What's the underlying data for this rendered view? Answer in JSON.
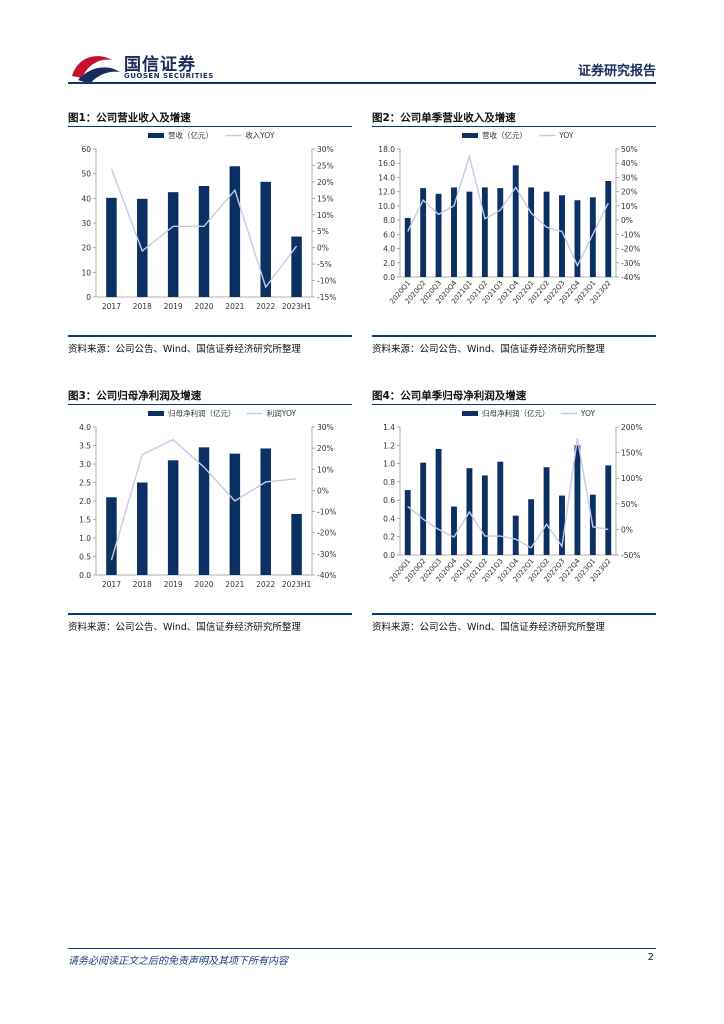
{
  "header": {
    "logo_cn": "国信证券",
    "logo_en": "GUOSEN SECURITIES",
    "title": "证券研究报告"
  },
  "figures": [
    {
      "title": "图1：公司营业收入及增速",
      "source": "资料来源：公司公告、Wind、国信证券经济研究所整理"
    },
    {
      "title": "图2：公司单季营业收入及增速",
      "source": "资料来源：公司公告、Wind、国信证券经济研究所整理"
    },
    {
      "title": "图3：公司归母净利润及增速",
      "source": "资料来源：公司公告、Wind、国信证券经济研究所整理"
    },
    {
      "title": "图4：公司单季归母净利润及增速",
      "source": "资料来源：公司公告、Wind、国信证券经济研究所整理"
    }
  ],
  "chart_data": [
    {
      "type": "bar",
      "categories": [
        "2017",
        "2018",
        "2019",
        "2020",
        "2021",
        "2022",
        "2023H1"
      ],
      "series": [
        {
          "name": "营收（亿元）",
          "axis": "left",
          "type": "bar",
          "color": "#0b3164",
          "values": [
            40.2,
            39.8,
            42.5,
            45.0,
            53.0,
            46.7,
            24.5
          ]
        },
        {
          "name": "收入YOY",
          "axis": "right",
          "type": "line",
          "color": "#c8cbe6",
          "values": [
            24.0,
            -1.0,
            6.5,
            6.5,
            17.5,
            -12.0,
            0.5
          ]
        }
      ],
      "ylim_left": [
        0,
        60
      ],
      "yticks_left": [
        "0",
        "10",
        "20",
        "30",
        "40",
        "50",
        "60"
      ],
      "ylim_right": [
        -15,
        30
      ],
      "yticks_right": [
        "-15%",
        "-10%",
        "-5%",
        "0%",
        "5%",
        "10%",
        "15%",
        "20%",
        "25%",
        "30%"
      ],
      "rotate_labels": false
    },
    {
      "type": "bar",
      "categories": [
        "2020Q1",
        "2020Q2",
        "2020Q3",
        "2020Q4",
        "2021Q1",
        "2021Q2",
        "2021Q3",
        "2021Q4",
        "2022Q1",
        "2022Q2",
        "2022Q3",
        "2022Q4",
        "2023Q1",
        "2023Q2"
      ],
      "series": [
        {
          "name": "营收（亿元）",
          "axis": "left",
          "type": "bar",
          "color": "#0b3164",
          "values": [
            8.3,
            12.5,
            11.7,
            12.6,
            12.0,
            12.6,
            12.5,
            15.7,
            12.6,
            12.0,
            11.5,
            10.8,
            11.2,
            13.5
          ]
        },
        {
          "name": "YOY",
          "axis": "right",
          "type": "line",
          "color": "#c8cbe6",
          "values": [
            -8.0,
            14.0,
            4.0,
            10.0,
            45.0,
            1.0,
            7.0,
            23.0,
            5.0,
            -5.0,
            -8.0,
            -32.0,
            -10.0,
            12.0
          ]
        }
      ],
      "ylim_left": [
        0,
        18
      ],
      "yticks_left": [
        "0.0",
        "2.0",
        "4.0",
        "6.0",
        "8.0",
        "10.0",
        "12.0",
        "14.0",
        "16.0",
        "18.0"
      ],
      "ylim_right": [
        -40,
        50
      ],
      "yticks_right": [
        "-40%",
        "-30%",
        "-20%",
        "-10%",
        "0%",
        "10%",
        "20%",
        "30%",
        "40%",
        "50%"
      ],
      "rotate_labels": true
    },
    {
      "type": "bar",
      "categories": [
        "2017",
        "2018",
        "2019",
        "2020",
        "2021",
        "2022",
        "2023H1"
      ],
      "series": [
        {
          "name": "归母净利润（亿元）",
          "axis": "left",
          "type": "bar",
          "color": "#0b3164",
          "values": [
            2.1,
            2.5,
            3.1,
            3.45,
            3.28,
            3.42,
            1.65
          ]
        },
        {
          "name": "利润YOY",
          "axis": "right",
          "type": "line",
          "color": "#c8cbe6",
          "values": [
            -33.0,
            17.0,
            24.0,
            11.0,
            -5.0,
            4.0,
            5.5
          ]
        }
      ],
      "ylim_left": [
        0,
        4
      ],
      "yticks_left": [
        "0.0",
        "0.5",
        "1.0",
        "1.5",
        "2.0",
        "2.5",
        "3.0",
        "3.5",
        "4.0"
      ],
      "ylim_right": [
        -40,
        30
      ],
      "yticks_right": [
        "-40%",
        "-30%",
        "-20%",
        "-10%",
        "0%",
        "10%",
        "20%",
        "30%"
      ],
      "rotate_labels": false
    },
    {
      "type": "bar",
      "categories": [
        "2020Q1",
        "2020Q2",
        "2020Q3",
        "2020Q4",
        "2021Q1",
        "2021Q2",
        "2021Q3",
        "2021Q4",
        "2022Q1",
        "2022Q2",
        "2022Q3",
        "2022Q4",
        "2023Q1",
        "2023Q2"
      ],
      "series": [
        {
          "name": "归母净利润（亿元）",
          "axis": "left",
          "type": "bar",
          "color": "#0b3164",
          "values": [
            0.71,
            1.01,
            1.16,
            0.53,
            0.95,
            0.87,
            1.02,
            0.43,
            0.61,
            0.96,
            0.65,
            1.2,
            0.66,
            0.98
          ]
        },
        {
          "name": "YOY",
          "axis": "right",
          "type": "line",
          "color": "#c8cbe6",
          "values": [
            45.0,
            20.0,
            0.0,
            -15.0,
            34.0,
            -13.0,
            -13.0,
            -19.0,
            -36.0,
            10.0,
            -33.0,
            178.0,
            5.0,
            0.0
          ]
        }
      ],
      "ylim_left": [
        0,
        1.4
      ],
      "yticks_left": [
        "0.0",
        "0.2",
        "0.4",
        "0.6",
        "0.8",
        "1.0",
        "1.2",
        "1.4"
      ],
      "ylim_right": [
        -50,
        200
      ],
      "yticks_right": [
        "-50%",
        "0%",
        "50%",
        "100%",
        "150%",
        "200%"
      ],
      "rotate_labels": true
    }
  ],
  "footer": {
    "disclaimer": "请务必阅读正文之后的免责声明及其项下所有内容",
    "page": "2"
  }
}
